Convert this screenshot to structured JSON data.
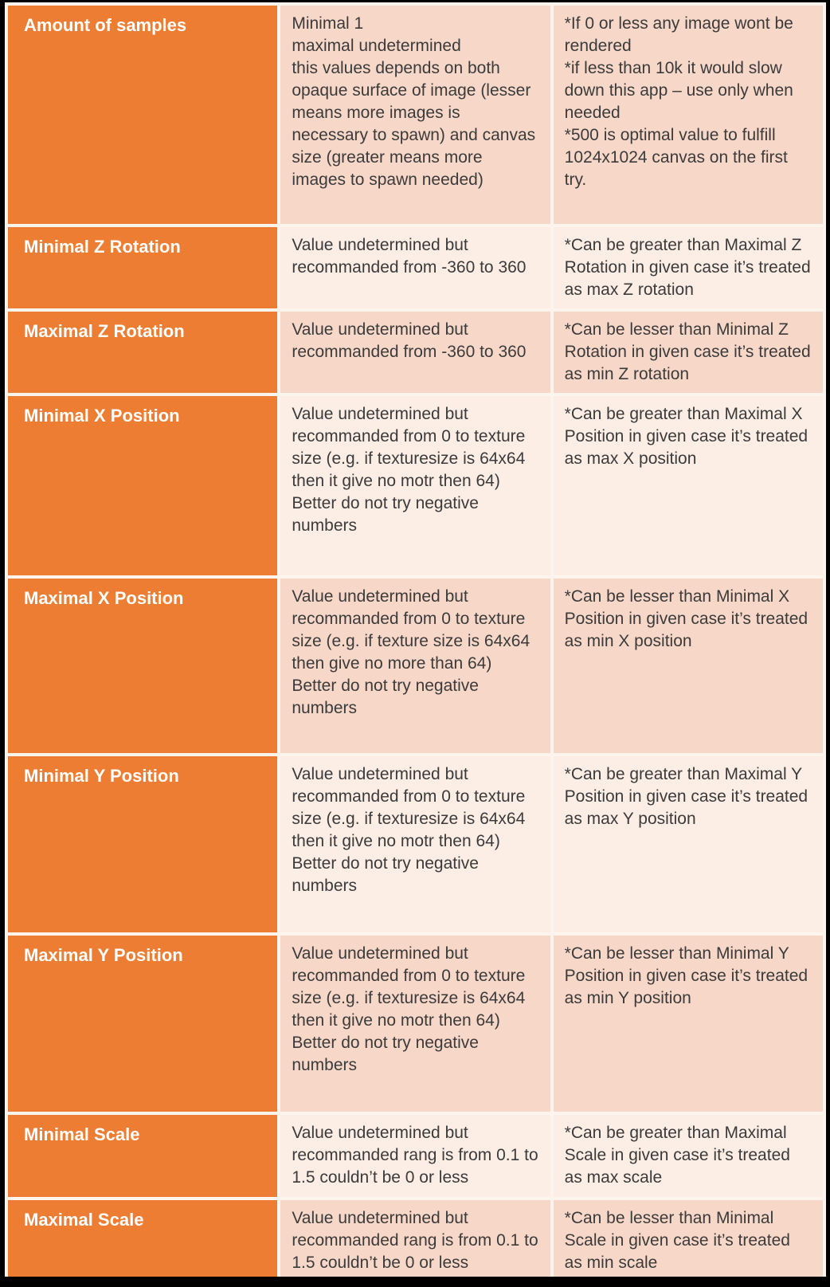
{
  "colors": {
    "accent_orange": "#EC7D33",
    "band_dark": "#F7D7C8",
    "band_light": "#FCEDE5",
    "divider": "#FDF4EE",
    "frame": "#000000",
    "body_text": "#3B3B3B",
    "param_text": "#FFFFFF"
  },
  "table": {
    "rows": [
      {
        "parameter": "Amount of samples",
        "value": "Minimal 1\nmaximal undetermined\nthis values depends on both opaque surface of image (lesser means more images is necessary to spawn) and canvas size (greater means more images to spawn needed)",
        "notes": "*If 0 or less any image wont be rendered\n*if less than 10k it would slow down this app – use only when needed\n*500 is optimal value to fulfill 1024x1024 canvas on the first try."
      },
      {
        "parameter": "Minimal Z Rotation",
        "value": "Value undetermined but recommanded from -360 to 360",
        "notes": "*Can be greater than Maximal Z Rotation in given case it’s treated as max Z rotation"
      },
      {
        "parameter": "Maximal Z Rotation",
        "value": "Value undetermined but recommanded from -360 to 360",
        "notes": "*Can be lesser than Minimal Z Rotation in given case it’s treated as min Z rotation"
      },
      {
        "parameter": "Minimal X Position",
        "value": "Value undetermined but recommanded from 0 to texture size (e.g. if texturesize is 64x64 then it give no motr then 64)\nBetter do not try negative numbers",
        "notes": "*Can be greater than Maximal X Position in given case it’s treated as max X position"
      },
      {
        "parameter": "Maximal X Position",
        "value": "Value undetermined but recommanded from 0 to texture size (e.g. if texture size is 64x64 then give no more than 64)\nBetter do not try negative numbers",
        "notes": "*Can be lesser than Minimal X Position in given case it’s treated as min X position"
      },
      {
        "parameter": "Minimal Y Position",
        "value": "Value undetermined but recommanded from 0 to texture size (e.g. if texturesize is 64x64 then it give no motr then 64)\nBetter do not try negative numbers",
        "notes": "*Can be greater than Maximal Y Position in given case it’s treated as max Y position"
      },
      {
        "parameter": "Maximal Y Position",
        "value": "Value undetermined but recommanded from 0 to texture size (e.g. if texturesize is 64x64 then it give no motr then 64)\nBetter do not try negative numbers",
        "notes": "*Can be lesser than Minimal Y Position in given case it’s treated as min Y position"
      },
      {
        "parameter": "Minimal Scale",
        "value": "Value undetermined but recommanded rang is from 0.1 to 1.5 couldn’t be 0 or less",
        "notes": "*Can be greater than Maximal Scale in given case it’s treated as max scale"
      },
      {
        "parameter": "Maximal Scale",
        "value": "Value undetermined but recommanded rang is from 0.1 to 1.5 couldn’t be 0 or less",
        "notes": "*Can be lesser than Minimal Scale in given case it’s treated as min scale"
      }
    ]
  }
}
